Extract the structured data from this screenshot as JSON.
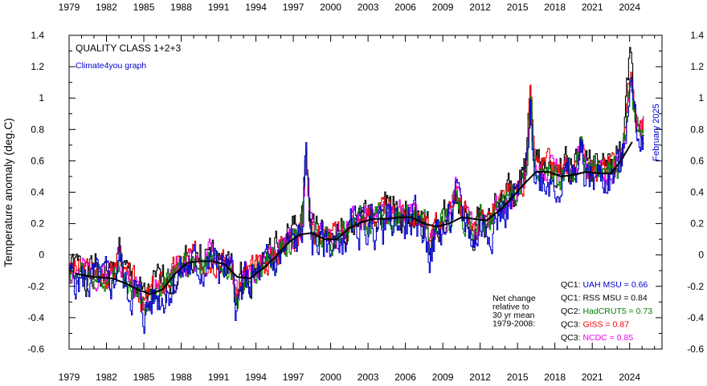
{
  "chart_data": {
    "type": "line",
    "title": "QUALITY CLASS 1+2+3",
    "credit": "Climate4you graph",
    "ylabel": "Temperature anomaly (deg.C)",
    "xlabel": "",
    "date_label": "February 2025",
    "xlim": [
      1979,
      2026.6
    ],
    "ylim": [
      -0.6,
      1.4
    ],
    "grid": false,
    "x_ticks": [
      "1979",
      "1982",
      "1985",
      "1988",
      "1991",
      "1994",
      "1997",
      "2000",
      "2003",
      "2006",
      "2009",
      "2012",
      "2015",
      "2018",
      "2021",
      "2024"
    ],
    "y_ticks": [
      "1.4",
      "1.2",
      "1",
      "0.8",
      "0.6",
      "0.4",
      "0.2",
      "0",
      "-0.2",
      "-0.4",
      "-0.6"
    ],
    "note": "Net change\nrelative to\n30 yr mean\n1979-2008:",
    "legend": [
      {
        "label": "QC1: UAH MSU = 0.66",
        "color": "#0000cc"
      },
      {
        "label": "QC1: RSS MSU = 0.84",
        "color": "#000000"
      },
      {
        "label": "QC2: HadCRUT5 = 0.73",
        "color": "#008000"
      },
      {
        "label": "QC3: GISS = 0.87",
        "color": "#ee0000"
      },
      {
        "label": "QC3: NCDC = 0.85",
        "color": "#ee00ee"
      }
    ],
    "series": [
      {
        "key": "rss",
        "color": "#000000",
        "amp": 0.1,
        "offset": 0.03,
        "seed": 1
      },
      {
        "key": "ncdc",
        "color": "#ee00ee",
        "amp": 0.07,
        "offset": 0.02,
        "seed": 2
      },
      {
        "key": "giss",
        "color": "#ee0000",
        "amp": 0.07,
        "offset": 0.03,
        "seed": 3
      },
      {
        "key": "hadcrut",
        "color": "#008000",
        "amp": 0.07,
        "offset": 0.0,
        "seed": 4
      },
      {
        "key": "uah",
        "color": "#0000cc",
        "amp": 0.11,
        "offset": -0.03,
        "seed": 5
      }
    ],
    "trend_color": "#000000",
    "trend_anchors": {
      "x": [
        1979.5,
        1981,
        1982.5,
        1983.5,
        1984.5,
        1985.5,
        1986.5,
        1987.5,
        1988.5,
        1989.5,
        1990.5,
        1991.5,
        1992.5,
        1993.5,
        1994.5,
        1995.5,
        1996.5,
        1997.5,
        1998.5,
        1999.5,
        2000.5,
        2001.5,
        2002.5,
        2003.5,
        2004.5,
        2005.5,
        2006.5,
        2007.5,
        2008.5,
        2009.5,
        2010.5,
        2011.5,
        2012.5,
        2013.5,
        2014.5,
        2015.5,
        2016.5,
        2017.5,
        2018.5,
        2019.5,
        2020.5,
        2021.5,
        2022.5,
        2023.3,
        2024.2
      ],
      "y": [
        -0.12,
        -0.14,
        -0.15,
        -0.18,
        -0.22,
        -0.25,
        -0.22,
        -0.12,
        -0.05,
        -0.04,
        -0.04,
        -0.06,
        -0.14,
        -0.15,
        -0.09,
        -0.02,
        0.07,
        0.13,
        0.14,
        0.1,
        0.1,
        0.17,
        0.21,
        0.23,
        0.23,
        0.24,
        0.24,
        0.2,
        0.18,
        0.2,
        0.24,
        0.23,
        0.22,
        0.28,
        0.36,
        0.45,
        0.53,
        0.53,
        0.5,
        0.51,
        0.53,
        0.52,
        0.52,
        0.6,
        0.72
      ]
    }
  }
}
